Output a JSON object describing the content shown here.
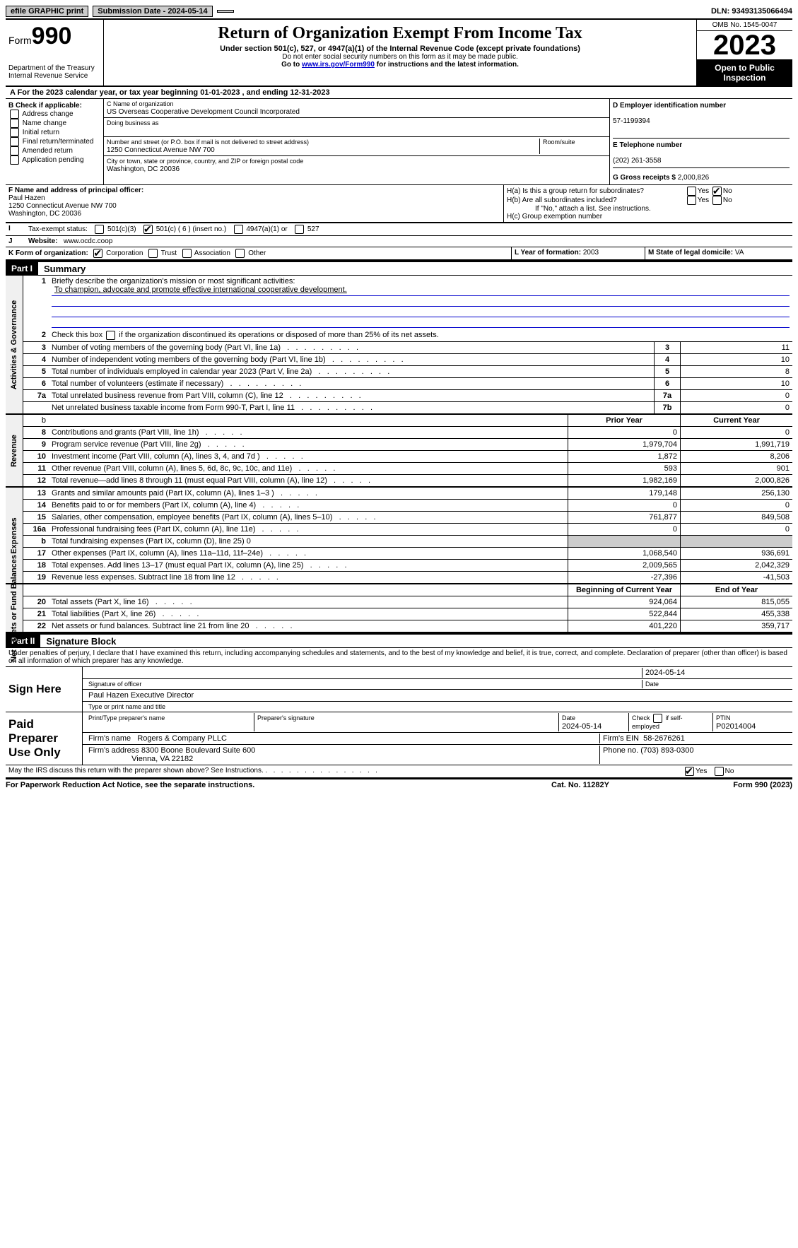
{
  "topbar": {
    "efile": "efile GRAPHIC print",
    "sub": "Submission Date - 2024-05-14",
    "dln": "DLN: 93493135066494"
  },
  "header": {
    "form": "Form",
    "num": "990",
    "dept": "Department of the Treasury Internal Revenue Service",
    "title": "Return of Organization Exempt From Income Tax",
    "sub": "Under section 501(c), 527, or 4947(a)(1) of the Internal Revenue Code (except private foundations)",
    "note1": "Do not enter social security numbers on this form as it may be made public.",
    "note2_pre": "Go to ",
    "note2_link": "www.irs.gov/Form990",
    "note2_post": " for instructions and the latest information.",
    "omb": "OMB No. 1545-0047",
    "year": "2023",
    "inspect": "Open to Public Inspection"
  },
  "line_a": "A For the 2023 calendar year, or tax year beginning 01-01-2023    , and ending 12-31-2023",
  "b": {
    "hdr": "B Check if applicable:",
    "opts": [
      "Address change",
      "Name change",
      "Initial return",
      "Final return/terminated",
      "Amended return",
      "Application pending"
    ]
  },
  "c": {
    "name_lbl": "C Name of organization",
    "name": "US Overseas Cooperative Development Council Incorporated",
    "dba_lbl": "Doing business as",
    "addr_lbl": "Number and street (or P.O. box if mail is not delivered to street address)",
    "room_lbl": "Room/suite",
    "addr": "1250 Connecticut Avenue NW 700",
    "city_lbl": "City or town, state or province, country, and ZIP or foreign postal code",
    "city": "Washington, DC  20036"
  },
  "d": {
    "lbl": "D Employer identification number",
    "val": "57-1199394"
  },
  "e": {
    "lbl": "E Telephone number",
    "val": "(202) 261-3558"
  },
  "g": {
    "lbl": "G Gross receipts $",
    "val": "2,000,826"
  },
  "f": {
    "lbl": "F  Name and address of principal officer:",
    "name": "Paul Hazen",
    "addr": "1250 Connecticut Avenue NW 700",
    "city": "Washington, DC  20036"
  },
  "h": {
    "a": "H(a)  Is this a group return for subordinates?",
    "b": "H(b)  Are all subordinates included?",
    "note": "If \"No,\" attach a list. See instructions.",
    "c": "H(c)  Group exemption number"
  },
  "i": {
    "lbl": "Tax-exempt status:",
    "o1": "501(c)(3)",
    "o2": "501(c) ( 6 ) (insert no.)",
    "o3": "4947(a)(1) or",
    "o4": "527"
  },
  "j": {
    "lbl": "Website:",
    "val": "www.ocdc.coop"
  },
  "k": {
    "lbl": "K Form of organization:",
    "o1": "Corporation",
    "o2": "Trust",
    "o3": "Association",
    "o4": "Other"
  },
  "l": {
    "lbl": "L Year of formation:",
    "val": "2003"
  },
  "m": {
    "lbl": "M State of legal domicile:",
    "val": "VA"
  },
  "parts": {
    "p1": "Part I",
    "p1t": "Summary",
    "p2": "Part II",
    "p2t": "Signature Block"
  },
  "sides": {
    "gov": "Activities & Governance",
    "rev": "Revenue",
    "exp": "Expenses",
    "net": "Net Assets or Fund Balances"
  },
  "s1": {
    "q": "Briefly describe the organization's mission or most significant activities:",
    "mission": "To champion, advocate and promote effective international cooperative development."
  },
  "s2": "Check this box       if the organization discontinued its operations or disposed of more than 25% of its net assets.",
  "gov_rows": [
    {
      "n": "3",
      "d": "Number of voting members of the governing body (Part VI, line 1a)",
      "b": "3",
      "v": "11"
    },
    {
      "n": "4",
      "d": "Number of independent voting members of the governing body (Part VI, line 1b)",
      "b": "4",
      "v": "10"
    },
    {
      "n": "5",
      "d": "Total number of individuals employed in calendar year 2023 (Part V, line 2a)",
      "b": "5",
      "v": "8"
    },
    {
      "n": "6",
      "d": "Total number of volunteers (estimate if necessary)",
      "b": "6",
      "v": "10"
    },
    {
      "n": "7a",
      "d": "Total unrelated business revenue from Part VIII, column (C), line 12",
      "b": "7a",
      "v": "0"
    },
    {
      "n": "",
      "d": "Net unrelated business taxable income from Form 990-T, Part I, line 11",
      "b": "7b",
      "v": "0"
    }
  ],
  "rev_hdr": {
    "py": "Prior Year",
    "cy": "Current Year"
  },
  "rev_rows": [
    {
      "n": "8",
      "d": "Contributions and grants (Part VIII, line 1h)",
      "py": "0",
      "cy": "0"
    },
    {
      "n": "9",
      "d": "Program service revenue (Part VIII, line 2g)",
      "py": "1,979,704",
      "cy": "1,991,719"
    },
    {
      "n": "10",
      "d": "Investment income (Part VIII, column (A), lines 3, 4, and 7d )",
      "py": "1,872",
      "cy": "8,206"
    },
    {
      "n": "11",
      "d": "Other revenue (Part VIII, column (A), lines 5, 6d, 8c, 9c, 10c, and 11e)",
      "py": "593",
      "cy": "901"
    },
    {
      "n": "12",
      "d": "Total revenue—add lines 8 through 11 (must equal Part VIII, column (A), line 12)",
      "py": "1,982,169",
      "cy": "2,000,826"
    }
  ],
  "exp_rows": [
    {
      "n": "13",
      "d": "Grants and similar amounts paid (Part IX, column (A), lines 1–3 )",
      "py": "179,148",
      "cy": "256,130"
    },
    {
      "n": "14",
      "d": "Benefits paid to or for members (Part IX, column (A), line 4)",
      "py": "0",
      "cy": "0"
    },
    {
      "n": "15",
      "d": "Salaries, other compensation, employee benefits (Part IX, column (A), lines 5–10)",
      "py": "761,877",
      "cy": "849,508"
    },
    {
      "n": "16a",
      "d": "Professional fundraising fees (Part IX, column (A), line 11e)",
      "py": "0",
      "cy": "0"
    },
    {
      "n": "b",
      "d": "Total fundraising expenses (Part IX, column (D), line 25) 0",
      "py": "",
      "cy": "",
      "shade": true
    },
    {
      "n": "17",
      "d": "Other expenses (Part IX, column (A), lines 11a–11d, 11f–24e)",
      "py": "1,068,540",
      "cy": "936,691"
    },
    {
      "n": "18",
      "d": "Total expenses. Add lines 13–17 (must equal Part IX, column (A), line 25)",
      "py": "2,009,565",
      "cy": "2,042,329"
    },
    {
      "n": "19",
      "d": "Revenue less expenses. Subtract line 18 from line 12",
      "py": "-27,396",
      "cy": "-41,503"
    }
  ],
  "net_hdr": {
    "by": "Beginning of Current Year",
    "ey": "End of Year"
  },
  "net_rows": [
    {
      "n": "20",
      "d": "Total assets (Part X, line 16)",
      "py": "924,064",
      "cy": "815,055"
    },
    {
      "n": "21",
      "d": "Total liabilities (Part X, line 26)",
      "py": "522,844",
      "cy": "455,338"
    },
    {
      "n": "22",
      "d": "Net assets or fund balances. Subtract line 21 from line 20",
      "py": "401,220",
      "cy": "359,717"
    }
  ],
  "perjury": "Under penalties of perjury, I declare that I have examined this return, including accompanying schedules and statements, and to the best of my knowledge and belief, it is true, correct, and complete. Declaration of preparer (other than officer) is based on all information of which preparer has any knowledge.",
  "sign": {
    "here": "Sign Here",
    "date": "2024-05-14",
    "sig_lbl": "Signature of officer",
    "date_lbl": "Date",
    "name": "Paul Hazen  Executive Director",
    "name_lbl": "Type or print name and title"
  },
  "paid": {
    "lbl": "Paid Preparer Use Only",
    "h1": "Print/Type preparer's name",
    "h2": "Preparer's signature",
    "h3": "Date",
    "dv": "2024-05-14",
    "h4": "Check         if self-employed",
    "h5": "PTIN",
    "ptin": "P02014004",
    "firm_lbl": "Firm's name",
    "firm": "Rogers & Company PLLC",
    "ein_lbl": "Firm's EIN",
    "ein": "58-2676261",
    "addr_lbl": "Firm's address",
    "addr1": "8300 Boone Boulevard Suite 600",
    "addr2": "Vienna, VA  22182",
    "ph_lbl": "Phone no.",
    "ph": "(703) 893-0300"
  },
  "discuss": "May the IRS discuss this return with the preparer shown above? See Instructions.",
  "footer": {
    "l": "For Paperwork Reduction Act Notice, see the separate instructions.",
    "m": "Cat. No. 11282Y",
    "r": "Form 990 (2023)"
  },
  "yn": {
    "y": "Yes",
    "n": "No"
  }
}
